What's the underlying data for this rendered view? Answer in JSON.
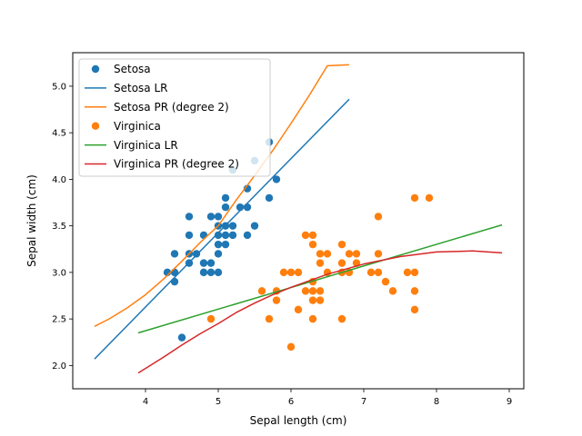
{
  "chart_data": {
    "type": "scatter",
    "title": "",
    "xlabel": "Sepal length (cm)",
    "ylabel": "Sepal width (cm)",
    "xlim": [
      3.0,
      9.2
    ],
    "ylim": [
      1.75,
      5.36
    ],
    "xticks": [
      4,
      5,
      6,
      7,
      8,
      9
    ],
    "xtick_labels": [
      "4",
      "5",
      "6",
      "7",
      "8",
      "9"
    ],
    "yticks": [
      2.0,
      2.5,
      3.0,
      3.5,
      4.0,
      4.5,
      5.0
    ],
    "ytick_labels": [
      "2.0",
      "2.5",
      "3.0",
      "3.5",
      "4.0",
      "4.5",
      "5.0"
    ],
    "grid": false,
    "legend_position": "upper-left",
    "series": [
      {
        "name": "Setosa",
        "kind": "scatter",
        "color": "#1f77b4",
        "points": [
          [
            4.3,
            3.0
          ],
          [
            4.4,
            2.9
          ],
          [
            4.4,
            3.0
          ],
          [
            4.4,
            3.2
          ],
          [
            4.5,
            2.3
          ],
          [
            4.6,
            3.1
          ],
          [
            4.6,
            3.2
          ],
          [
            4.6,
            3.4
          ],
          [
            4.6,
            3.6
          ],
          [
            4.7,
            3.2
          ],
          [
            4.8,
            3.0
          ],
          [
            4.8,
            3.1
          ],
          [
            4.8,
            3.4
          ],
          [
            4.9,
            3.0
          ],
          [
            4.9,
            3.1
          ],
          [
            4.9,
            3.6
          ],
          [
            5.0,
            3.0
          ],
          [
            5.0,
            3.2
          ],
          [
            5.0,
            3.3
          ],
          [
            5.0,
            3.4
          ],
          [
            5.0,
            3.5
          ],
          [
            5.0,
            3.6
          ],
          [
            5.1,
            3.3
          ],
          [
            5.1,
            3.4
          ],
          [
            5.1,
            3.5
          ],
          [
            5.1,
            3.7
          ],
          [
            5.1,
            3.8
          ],
          [
            5.2,
            3.4
          ],
          [
            5.2,
            3.5
          ],
          [
            5.2,
            4.1
          ],
          [
            5.3,
            3.7
          ],
          [
            5.4,
            3.4
          ],
          [
            5.4,
            3.7
          ],
          [
            5.4,
            3.9
          ],
          [
            5.5,
            3.5
          ],
          [
            5.5,
            4.2
          ],
          [
            5.7,
            3.8
          ],
          [
            5.7,
            4.4
          ],
          [
            5.8,
            4.0
          ]
        ]
      },
      {
        "name": "Setosa LR",
        "kind": "line",
        "color": "#1f77b4",
        "points": [
          [
            3.3,
            2.07
          ],
          [
            6.8,
            4.86
          ]
        ]
      },
      {
        "name": "Setosa PR (degree 2)",
        "kind": "line",
        "color": "#ff7f0e",
        "points": [
          [
            3.3,
            2.42
          ],
          [
            3.5,
            2.5
          ],
          [
            3.75,
            2.62
          ],
          [
            4.0,
            2.76
          ],
          [
            4.25,
            2.93
          ],
          [
            4.5,
            3.12
          ],
          [
            4.75,
            3.32
          ],
          [
            5.0,
            3.5
          ],
          [
            5.25,
            3.78
          ],
          [
            5.5,
            4.04
          ],
          [
            5.75,
            4.31
          ],
          [
            6.0,
            4.6
          ],
          [
            6.25,
            4.9
          ],
          [
            6.5,
            5.22
          ],
          [
            6.8,
            5.23
          ]
        ]
      },
      {
        "name": "Virginica",
        "kind": "scatter",
        "color": "#ff7f0e",
        "points": [
          [
            4.9,
            2.5
          ],
          [
            5.6,
            2.8
          ],
          [
            5.7,
            2.5
          ],
          [
            5.8,
            2.7
          ],
          [
            5.8,
            2.8
          ],
          [
            5.9,
            3.0
          ],
          [
            6.0,
            2.2
          ],
          [
            6.0,
            3.0
          ],
          [
            6.1,
            2.6
          ],
          [
            6.1,
            3.0
          ],
          [
            6.2,
            2.8
          ],
          [
            6.2,
            3.4
          ],
          [
            6.3,
            2.5
          ],
          [
            6.3,
            2.7
          ],
          [
            6.3,
            2.8
          ],
          [
            6.3,
            2.9
          ],
          [
            6.3,
            3.3
          ],
          [
            6.3,
            3.4
          ],
          [
            6.4,
            2.7
          ],
          [
            6.4,
            2.8
          ],
          [
            6.4,
            3.1
          ],
          [
            6.4,
            3.2
          ],
          [
            6.5,
            3.0
          ],
          [
            6.5,
            3.2
          ],
          [
            6.7,
            2.5
          ],
          [
            6.7,
            3.0
          ],
          [
            6.7,
            3.1
          ],
          [
            6.7,
            3.3
          ],
          [
            6.8,
            3.0
          ],
          [
            6.8,
            3.2
          ],
          [
            6.9,
            3.1
          ],
          [
            6.9,
            3.2
          ],
          [
            7.1,
            3.0
          ],
          [
            7.2,
            3.0
          ],
          [
            7.2,
            3.2
          ],
          [
            7.2,
            3.6
          ],
          [
            7.3,
            2.9
          ],
          [
            7.4,
            2.8
          ],
          [
            7.6,
            3.0
          ],
          [
            7.7,
            2.6
          ],
          [
            7.7,
            2.8
          ],
          [
            7.7,
            3.0
          ],
          [
            7.7,
            3.8
          ],
          [
            7.9,
            3.8
          ]
        ]
      },
      {
        "name": "Virginica LR",
        "kind": "line",
        "color": "#2ca02c",
        "points": [
          [
            3.9,
            2.35
          ],
          [
            8.9,
            3.51
          ]
        ]
      },
      {
        "name": "Virginica PR (degree 2)",
        "kind": "line",
        "color": "#d62728",
        "points": [
          [
            3.9,
            1.92
          ],
          [
            4.25,
            2.09
          ],
          [
            4.5,
            2.22
          ],
          [
            4.75,
            2.34
          ],
          [
            5.0,
            2.45
          ],
          [
            5.25,
            2.57
          ],
          [
            5.5,
            2.67
          ],
          [
            5.75,
            2.76
          ],
          [
            6.0,
            2.84
          ],
          [
            6.5,
            2.98
          ],
          [
            7.0,
            3.09
          ],
          [
            7.5,
            3.17
          ],
          [
            8.0,
            3.22
          ],
          [
            8.5,
            3.23
          ],
          [
            8.9,
            3.21
          ]
        ]
      }
    ]
  }
}
